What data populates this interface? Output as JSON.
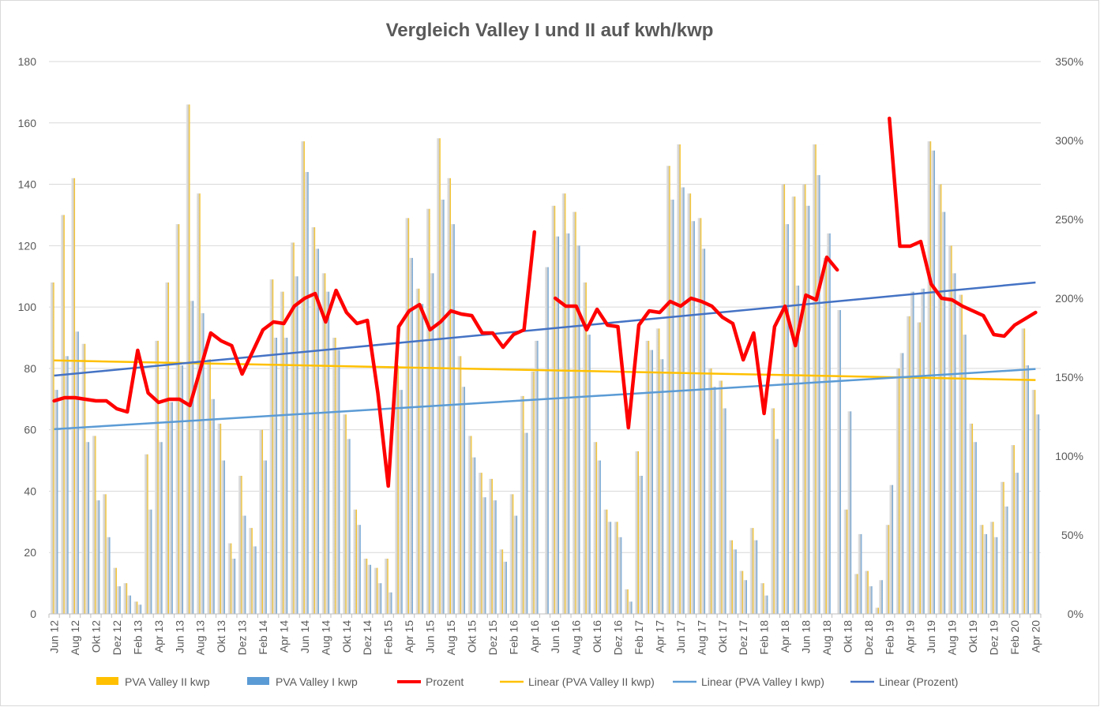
{
  "chart_data": {
    "type": "bar",
    "title": "Vergleich Valley I und II auf kwh/kwp",
    "xlabel": "",
    "ylabel": "",
    "ylim": [
      0,
      180
    ],
    "y2lim": [
      0,
      3.5
    ],
    "yticks": [
      0,
      20,
      40,
      60,
      80,
      100,
      120,
      140,
      160,
      180
    ],
    "yticks_labels": [
      "0",
      "20",
      "40",
      "60",
      "80",
      "100",
      "120",
      "140",
      "160",
      "180"
    ],
    "y2ticks": [
      0,
      0.5,
      1.0,
      1.5,
      2.0,
      2.5,
      3.0,
      3.5
    ],
    "y2ticks_labels": [
      "0%",
      "50%",
      "100%",
      "150%",
      "200%",
      "250%",
      "300%",
      "350%"
    ],
    "grid": true,
    "legend_position": "bottom",
    "categories": [
      "Jun 12",
      "Jul 12",
      "Aug 12",
      "Sep 12",
      "Okt 12",
      "Nov 12",
      "Dez 12",
      "Jan 13",
      "Feb 13",
      "Mrz 13",
      "Apr 13",
      "Mai 13",
      "Jun 13",
      "Jul 13",
      "Aug 13",
      "Sep 13",
      "Okt 13",
      "Nov 13",
      "Dez 13",
      "Jan 14",
      "Feb 14",
      "Mrz 14",
      "Apr 14",
      "Mai 14",
      "Jun 14",
      "Jul 14",
      "Aug 14",
      "Sep 14",
      "Okt 14",
      "Nov 14",
      "Dez 14",
      "Jan 15",
      "Feb 15",
      "Mrz 15",
      "Apr 15",
      "Mai 15",
      "Jun 15",
      "Jul 15",
      "Aug 15",
      "Sep 15",
      "Okt 15",
      "Nov 15",
      "Dez 15",
      "Jan 16",
      "Feb 16",
      "Mrz 16",
      "Apr 16",
      "Mai 16",
      "Jun 16",
      "Jul 16",
      "Aug 16",
      "Sep 16",
      "Okt 16",
      "Nov 16",
      "Dez 16",
      "Jan 17",
      "Feb 17",
      "Mrz 17",
      "Apr 17",
      "Mai 17",
      "Jun 17",
      "Jul 17",
      "Aug 17",
      "Sep 17",
      "Okt 17",
      "Nov 17",
      "Dez 17",
      "Jan 18",
      "Feb 18",
      "Mrz 18",
      "Apr 18",
      "Mai 18",
      "Jun 18",
      "Jul 18",
      "Aug 18",
      "Sep 18",
      "Okt 18",
      "Nov 18",
      "Dez 18",
      "Jan 19",
      "Feb 19",
      "Mrz 19",
      "Apr 19",
      "Mai 19",
      "Jun 19",
      "Jul 19",
      "Aug 19",
      "Sep 19",
      "Okt 19",
      "Nov 19",
      "Dez 19",
      "Jan 20",
      "Feb 20",
      "Mrz 20",
      "Apr 20"
    ],
    "x_tick_labels": [
      "Jun 12",
      "Aug 12",
      "Okt 12",
      "Dez 12",
      "Feb 13",
      "Apr 13",
      "Jun 13",
      "Aug 13",
      "Okt 13",
      "Dez 13",
      "Feb 14",
      "Apr 14",
      "Jun 14",
      "Aug 14",
      "Okt 14",
      "Dez 14",
      "Feb 15",
      "Apr 15",
      "Jun 15",
      "Aug 15",
      "Okt 15",
      "Dez 15",
      "Feb 16",
      "Apr 16",
      "Jun 16",
      "Aug 16",
      "Okt 16",
      "Dez 16",
      "Feb 17",
      "Apr 17",
      "Jun 17",
      "Aug 17",
      "Okt 17",
      "Dez 17",
      "Feb 18",
      "Apr 18",
      "Jun 18",
      "Aug 18",
      "Okt 18",
      "Dez 18",
      "Feb 19",
      "Apr 19",
      "Jun 19",
      "Aug 19",
      "Okt 19",
      "Dez 19",
      "Feb 20",
      "Apr 20"
    ],
    "series": [
      {
        "name": "PVA Valley II kwp",
        "kind": "bar",
        "axis": "left",
        "color": "#FFC000",
        "values": [
          108,
          130,
          142,
          88,
          58,
          39,
          15,
          10,
          4,
          52,
          89,
          108,
          127,
          166,
          137,
          83,
          62,
          23,
          45,
          28,
          60,
          109,
          105,
          121,
          154,
          126,
          111,
          90,
          65,
          34,
          18,
          15,
          18,
          81,
          129,
          106,
          132,
          155,
          142,
          84,
          58,
          46,
          44,
          21,
          39,
          71,
          79,
          null,
          133,
          137,
          131,
          108,
          56,
          34,
          30,
          8,
          53,
          89,
          93,
          146,
          153,
          137,
          129,
          80,
          76,
          24,
          14,
          28,
          10,
          67,
          140,
          136,
          140,
          153,
          116,
          null,
          34,
          13,
          14,
          2,
          29,
          80,
          97,
          95,
          154,
          140,
          120,
          104,
          62,
          29,
          30,
          43,
          55,
          93,
          73
        ]
      },
      {
        "name": "PVA Valley I kwp",
        "kind": "bar",
        "axis": "left",
        "color": "#5B9BD5",
        "values": [
          73,
          84,
          92,
          56,
          37,
          25,
          9,
          6,
          3,
          34,
          56,
          69,
          81,
          102,
          98,
          70,
          50,
          18,
          32,
          22,
          50,
          90,
          90,
          110,
          144,
          119,
          105,
          86,
          57,
          29,
          16,
          10,
          7,
          73,
          116,
          101,
          111,
          135,
          127,
          74,
          51,
          38,
          37,
          17,
          32,
          59,
          89,
          113,
          123,
          124,
          120,
          91,
          50,
          30,
          25,
          4,
          45,
          86,
          83,
          135,
          139,
          128,
          119,
          74,
          67,
          21,
          11,
          24,
          6,
          57,
          127,
          107,
          133,
          143,
          124,
          99,
          66,
          26,
          9,
          11,
          42,
          85,
          105,
          106,
          151,
          131,
          111,
          91,
          56,
          26,
          25,
          35,
          46,
          81,
          65
        ]
      },
      {
        "name": "Prozent",
        "kind": "line",
        "axis": "right",
        "color": "#FF0000",
        "values": [
          1.35,
          1.37,
          1.37,
          1.36,
          1.35,
          1.35,
          1.3,
          1.28,
          1.67,
          1.4,
          1.34,
          1.36,
          1.36,
          1.32,
          1.55,
          1.78,
          1.73,
          1.7,
          1.52,
          1.66,
          1.8,
          1.85,
          1.84,
          1.95,
          2.0,
          2.03,
          1.85,
          2.05,
          1.91,
          1.84,
          1.86,
          1.4,
          0.81,
          1.82,
          1.92,
          1.96,
          1.8,
          1.85,
          1.92,
          1.9,
          1.89,
          1.78,
          1.78,
          1.69,
          1.77,
          1.8,
          2.42,
          null,
          2.0,
          1.95,
          1.95,
          1.8,
          1.93,
          1.83,
          1.82,
          1.18,
          1.83,
          1.92,
          1.91,
          1.98,
          1.95,
          2.0,
          1.98,
          1.95,
          1.88,
          1.84,
          1.61,
          1.78,
          1.27,
          1.82,
          1.95,
          1.7,
          2.02,
          1.99,
          2.26,
          2.18,
          null,
          null,
          null,
          null,
          3.14,
          2.33,
          2.33,
          2.36,
          2.09,
          2.0,
          1.99,
          1.95,
          1.92,
          1.89,
          1.77,
          1.76,
          1.83,
          1.87,
          1.91
        ]
      },
      {
        "name": "Linear (PVA Valley II kwp)",
        "kind": "trend",
        "axis": "left",
        "color": "#FFC000",
        "from": 82.6,
        "to": 76.2
      },
      {
        "name": "Linear (PVA Valley I kwp)",
        "kind": "trend",
        "axis": "left",
        "color": "#5B9BD5",
        "from": 60.2,
        "to": 79.8
      },
      {
        "name": "Linear (Prozent)",
        "kind": "trend",
        "axis": "right",
        "color": "#4472C4",
        "from": 1.51,
        "to": 2.1
      }
    ]
  }
}
